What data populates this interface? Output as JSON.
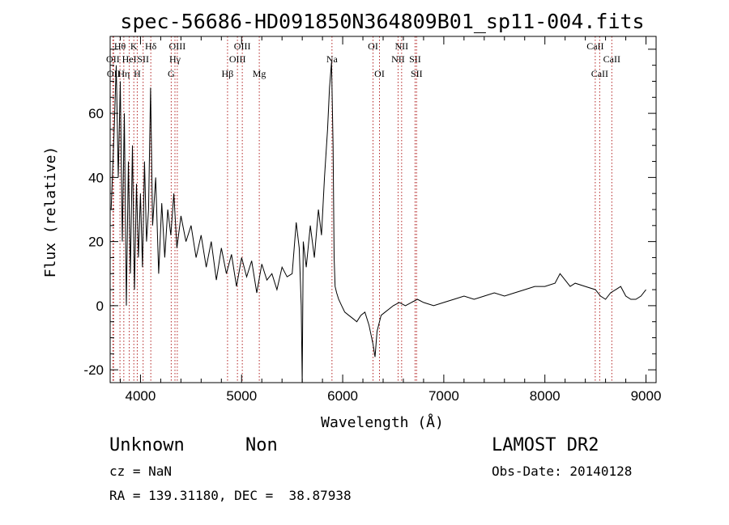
{
  "chart_data": {
    "type": "line",
    "title": "spec-56686-HD091850N364809B01_sp11-004.fits",
    "xlabel": "Wavelength (Å)",
    "ylabel": "Flux (relative)",
    "xlim": [
      3700,
      9100
    ],
    "ylim": [
      -24,
      84
    ],
    "x_ticks": [
      4000,
      5000,
      6000,
      7000,
      8000,
      9000
    ],
    "y_ticks": [
      -20,
      0,
      20,
      40,
      60
    ],
    "series": [
      {
        "x": [
          3710,
          3740,
          3760,
          3780,
          3800,
          3820,
          3840,
          3860,
          3880,
          3900,
          3920,
          3940,
          3960,
          3980,
          4000,
          4020,
          4040,
          4060,
          4080,
          4100,
          4120,
          4150,
          4180,
          4210,
          4240,
          4270,
          4300,
          4330,
          4360,
          4400,
          4450,
          4500,
          4550,
          4600,
          4650,
          4700,
          4750,
          4800,
          4850,
          4900,
          4950,
          5000,
          5050,
          5100,
          5150,
          5200,
          5250,
          5300,
          5350,
          5400,
          5450,
          5500,
          5540,
          5570,
          5590,
          5600,
          5610,
          5640,
          5680,
          5720,
          5760,
          5790,
          5820,
          5850,
          5870,
          5890,
          5905,
          5915,
          5925,
          5940,
          5960,
          5990,
          6020,
          6060,
          6100,
          6140,
          6180,
          6220,
          6260,
          6300,
          6320,
          6340,
          6380,
          6420,
          6460,
          6500,
          6560,
          6620,
          6680,
          6740,
          6800,
          6900,
          7000,
          7100,
          7200,
          7300,
          7400,
          7500,
          7600,
          7700,
          7800,
          7900,
          8000,
          8100,
          8150,
          8200,
          8250,
          8300,
          8400,
          8500,
          8550,
          8600,
          8650,
          8700,
          8750,
          8800,
          8850,
          8900,
          8950,
          9000
        ],
        "y": [
          30,
          55,
          75,
          40,
          70,
          20,
          60,
          0,
          45,
          10,
          50,
          5,
          38,
          15,
          35,
          12,
          45,
          20,
          30,
          68,
          25,
          40,
          10,
          32,
          15,
          30,
          22,
          35,
          18,
          28,
          20,
          25,
          15,
          22,
          12,
          20,
          8,
          18,
          10,
          16,
          6,
          15,
          9,
          14,
          4,
          13,
          8,
          10,
          5,
          12,
          9,
          10,
          26,
          18,
          0,
          -24,
          20,
          12,
          25,
          15,
          30,
          22,
          40,
          55,
          68,
          76,
          50,
          15,
          6,
          4,
          2,
          0,
          -2,
          -3,
          -4,
          -5,
          -3,
          -2,
          -6,
          -12,
          -16,
          -8,
          -3,
          -2,
          -1,
          0,
          1,
          0,
          1,
          2,
          1,
          0,
          1,
          2,
          3,
          2,
          3,
          4,
          3,
          4,
          5,
          6,
          6,
          7,
          10,
          8,
          6,
          7,
          6,
          5,
          3,
          2,
          4,
          5,
          6,
          3,
          2,
          2,
          3,
          5
        ]
      }
    ],
    "line_markers": [
      {
        "x": 3727,
        "label": "OII",
        "row": 2
      },
      {
        "x": 3734,
        "label": "OII",
        "row": 3
      },
      {
        "x": 3797,
        "label": "Hθ",
        "row": 1
      },
      {
        "x": 3835,
        "label": "Hη",
        "row": 3
      },
      {
        "x": 3889,
        "label": "HeI",
        "row": 2
      },
      {
        "x": 3934,
        "label": "K",
        "row": 1
      },
      {
        "x": 3968,
        "label": "H",
        "row": 3
      },
      {
        "x": 4026,
        "label": "SII",
        "row": 2
      },
      {
        "x": 4102,
        "label": "Hδ",
        "row": 1
      },
      {
        "x": 4304,
        "label": "G",
        "row": 3
      },
      {
        "x": 4341,
        "label": "Hγ",
        "row": 2
      },
      {
        "x": 4364,
        "label": "OIII",
        "row": 1
      },
      {
        "x": 4861,
        "label": "Hβ",
        "row": 3
      },
      {
        "x": 4959,
        "label": "OIII",
        "row": 2
      },
      {
        "x": 5007,
        "label": "OIII",
        "row": 1
      },
      {
        "x": 5175,
        "label": "Mg",
        "row": 3
      },
      {
        "x": 5894,
        "label": "Na",
        "row": 2
      },
      {
        "x": 6300,
        "label": "OI",
        "row": 1
      },
      {
        "x": 6364,
        "label": "OI",
        "row": 3
      },
      {
        "x": 6548,
        "label": "NII",
        "row": 2
      },
      {
        "x": 6583,
        "label": "NII",
        "row": 1
      },
      {
        "x": 6716,
        "label": "SII",
        "row": 2
      },
      {
        "x": 6731,
        "label": "SII",
        "row": 3
      },
      {
        "x": 8498,
        "label": "CaII",
        "row": 1
      },
      {
        "x": 8542,
        "label": "CaII",
        "row": 3
      },
      {
        "x": 8662,
        "label": "CaII",
        "row": 2
      }
    ]
  },
  "info": {
    "class": "Unknown",
    "subclass": "Non",
    "survey": "LAMOST DR2",
    "cz": "cz = NaN",
    "obs_date": "Obs-Date: 20140128",
    "coords": "RA = 139.31180, DEC =  38.87938"
  }
}
